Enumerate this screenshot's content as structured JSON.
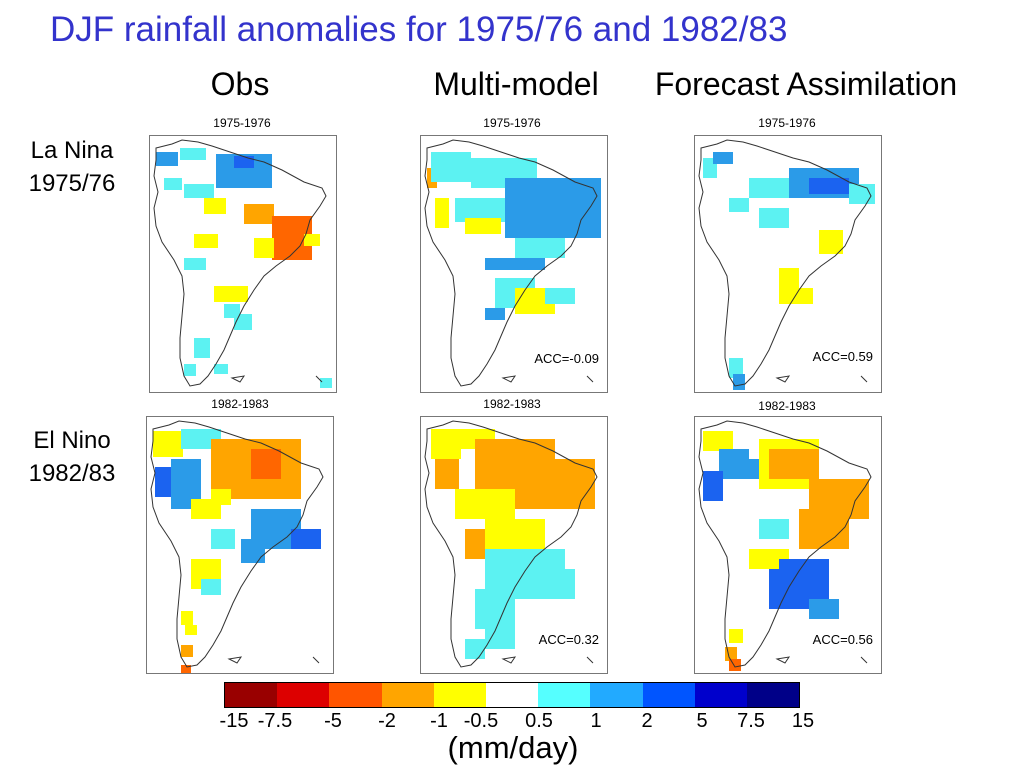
{
  "title": "DJF rainfall anomalies for 1975/76 and 1982/83",
  "columns": [
    "Obs",
    "Multi-model",
    "Forecast Assimilation"
  ],
  "rows": [
    {
      "label_line1": "La Nina",
      "label_line2": "1975/76"
    },
    {
      "label_line1": "El Nino",
      "label_line2": "1982/83"
    }
  ],
  "panels": [
    {
      "year": "1975-1976",
      "acc": ""
    },
    {
      "year": "1975-1976",
      "acc": "ACC=-0.09"
    },
    {
      "year": "1975-1976",
      "acc": "ACC=0.59"
    },
    {
      "year": "1982-1983",
      "acc": ""
    },
    {
      "year": "1982-1983",
      "acc": "ACC=0.32"
    },
    {
      "year": "1982-1983",
      "acc": "ACC=0.56"
    }
  ],
  "colorbar": {
    "colors": [
      "#990000",
      "#dd0000",
      "#ff5500",
      "#ffa500",
      "#ffff00",
      "#ffffff",
      "#55ffff",
      "#22aaff",
      "#0055ff",
      "#0000cc",
      "#000088"
    ],
    "ticks": [
      "-15",
      "-7.5",
      "-5",
      "-2",
      "-1",
      "-0.5",
      "0.5",
      "1",
      "2",
      "5",
      "7.5",
      "15"
    ],
    "units": "(mm/day)"
  },
  "anomaly_colors": {
    "strong_wet": "#1b63f0",
    "wet": "#2b9be8",
    "weak_wet": "#5cf2f2",
    "weak_dry": "#ffff00",
    "dry": "#ffa500",
    "strong_dry": "#ff6600",
    "coast": "#333333"
  }
}
